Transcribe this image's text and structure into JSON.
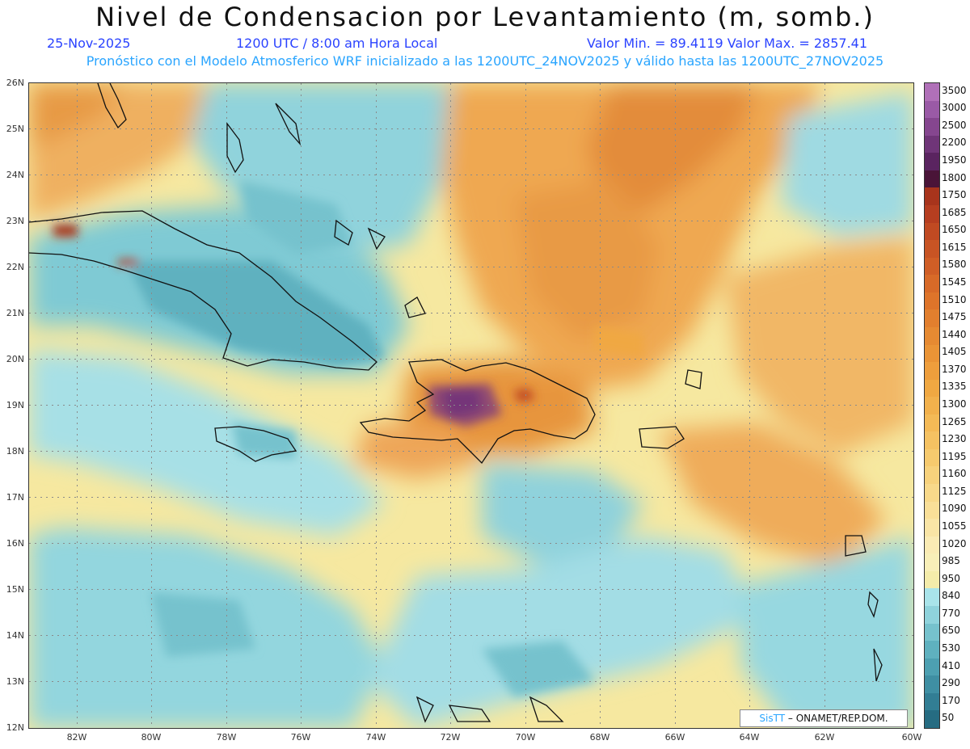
{
  "header": {
    "title": "Nivel de Condensacion por Levantamiento (m, somb.)",
    "date": "25-Nov-2025",
    "time": "1200 UTC / 8:00 am Hora Local",
    "minmax": "Valor Min. = 89.4119   Valor Max. = 2857.41",
    "forecast": "Pronóstico con el Modelo Atmosferico WRF inicializado a las 1200UTC_24NOV2025 y válido hasta las  1200UTC_27NOV2025"
  },
  "axes": {
    "lat_labels": [
      "26N",
      "25N",
      "24N",
      "23N",
      "22N",
      "21N",
      "20N",
      "19N",
      "18N",
      "17N",
      "16N",
      "15N",
      "14N",
      "13N",
      "12N"
    ],
    "lon_labels": [
      "82W",
      "80W",
      "78W",
      "76W",
      "74W",
      "72W",
      "70W",
      "68W",
      "66W",
      "64W",
      "62W",
      "60W"
    ]
  },
  "colorbar": {
    "labels": [
      "3500",
      "3000",
      "2500",
      "2200",
      "1950",
      "1800",
      "1750",
      "1685",
      "1650",
      "1615",
      "1580",
      "1545",
      "1510",
      "1475",
      "1440",
      "1405",
      "1370",
      "1335",
      "1300",
      "1265",
      "1230",
      "1195",
      "1160",
      "1125",
      "1090",
      "1055",
      "1020",
      "985",
      "950",
      "840",
      "770",
      "650",
      "530",
      "410",
      "290",
      "170",
      "50"
    ],
    "colors": [
      "#b070b8",
      "#9a5aa6",
      "#85468f",
      "#6f3578",
      "#5a2460",
      "#4a1438",
      "#a8341c",
      "#b63e20",
      "#c04a22",
      "#c85424",
      "#d05e26",
      "#d86a28",
      "#de742a",
      "#e27f2e",
      "#e68a32",
      "#ea9436",
      "#ee9e3c",
      "#f0a842",
      "#f2b14c",
      "#f4ba56",
      "#f5c262",
      "#f6ca6e",
      "#f7d27c",
      "#f8d98a",
      "#f9df98",
      "#f9e5a6",
      "#faebb4",
      "#f8efb8",
      "#f4ecaa",
      "#a9e4ea",
      "#8fd3dc",
      "#76c2cd",
      "#5fb1bf",
      "#4da0b1",
      "#3f8fa3",
      "#327e94",
      "#266c82"
    ]
  },
  "credit": {
    "brand": "SisTT",
    "org": "– ONAMET/REP.DOM."
  }
}
